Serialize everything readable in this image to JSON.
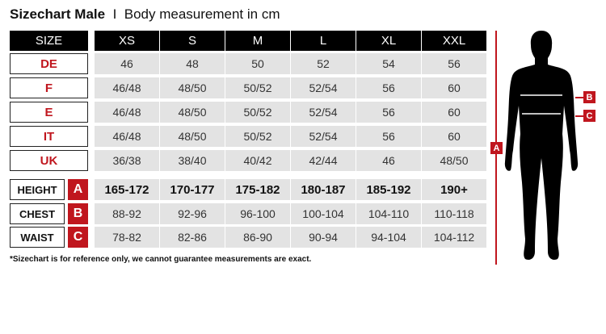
{
  "title": {
    "bold": "Sizechart Male",
    "separator": "I",
    "subtitle": "Body measurement in cm"
  },
  "header": {
    "label": "SIZE",
    "sizes": [
      "XS",
      "S",
      "M",
      "L",
      "XL",
      "XXL"
    ]
  },
  "size_rows": [
    {
      "label": "DE",
      "values": [
        "46",
        "48",
        "50",
        "52",
        "54",
        "56"
      ]
    },
    {
      "label": "F",
      "values": [
        "46/48",
        "48/50",
        "50/52",
        "52/54",
        "56",
        "60"
      ]
    },
    {
      "label": "E",
      "values": [
        "46/48",
        "48/50",
        "50/52",
        "52/54",
        "56",
        "60"
      ]
    },
    {
      "label": "IT",
      "values": [
        "46/48",
        "48/50",
        "50/52",
        "52/54",
        "56",
        "60"
      ]
    },
    {
      "label": "UK",
      "values": [
        "36/38",
        "38/40",
        "40/42",
        "42/44",
        "46",
        "48/50"
      ]
    }
  ],
  "measure_rows": [
    {
      "label": "HEIGHT",
      "badge": "A",
      "values": [
        "165-172",
        "170-177",
        "175-182",
        "180-187",
        "185-192",
        "190+"
      ]
    },
    {
      "label": "CHEST",
      "badge": "B",
      "values": [
        "88-92",
        "92-96",
        "96-100",
        "100-104",
        "104-110",
        "110-118"
      ]
    },
    {
      "label": "WAIST",
      "badge": "C",
      "values": [
        "78-82",
        "82-86",
        "86-90",
        "90-94",
        "94-104",
        "104-112"
      ]
    }
  ],
  "footnote": "*Sizechart is for reference only, we cannot guarantee measurements are exact.",
  "figure": {
    "markers": [
      "A",
      "B",
      "C"
    ]
  },
  "colors": {
    "accent": "#c0161e",
    "header_bg": "#000000",
    "cell_bg": "#e3e3e3"
  }
}
